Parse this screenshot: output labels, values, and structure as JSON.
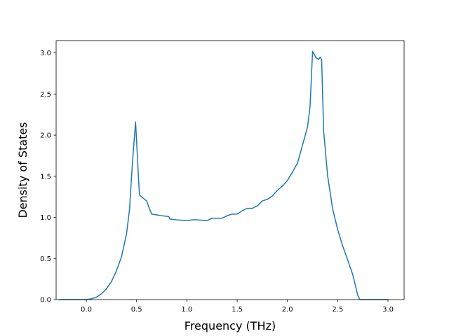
{
  "chart_data": {
    "type": "line",
    "title": "",
    "xlabel": "Frequency (THz)",
    "ylabel": "Density of States",
    "xlim": [
      -0.3,
      3.16
    ],
    "ylim": [
      0.0,
      3.15
    ],
    "xticks": [
      0.0,
      0.5,
      1.0,
      1.5,
      2.0,
      2.5,
      3.0
    ],
    "xtick_labels": [
      "0.0",
      "0.5",
      "1.0",
      "1.5",
      "2.0",
      "2.5",
      "3.0"
    ],
    "yticks": [
      0.0,
      0.5,
      1.0,
      1.5,
      2.0,
      2.5,
      3.0
    ],
    "ytick_labels": [
      "0.0",
      "0.5",
      "1.0",
      "1.5",
      "2.0",
      "2.5",
      "3.0"
    ],
    "grid": false,
    "legend": "none",
    "series": [
      {
        "color": "#1f77b4",
        "x": [
          -0.27,
          -0.2,
          -0.1,
          0.0,
          0.05,
          0.1,
          0.15,
          0.2,
          0.25,
          0.3,
          0.35,
          0.4,
          0.43,
          0.45,
          0.47,
          0.49,
          0.51,
          0.52,
          0.53,
          0.55,
          0.6,
          0.63,
          0.65,
          0.7,
          0.75,
          0.82,
          0.83,
          0.9,
          1.0,
          1.05,
          1.1,
          1.2,
          1.25,
          1.3,
          1.35,
          1.4,
          1.45,
          1.5,
          1.55,
          1.6,
          1.65,
          1.7,
          1.75,
          1.8,
          1.85,
          1.9,
          1.95,
          2.0,
          2.05,
          2.1,
          2.15,
          2.2,
          2.225,
          2.25,
          2.28,
          2.31,
          2.325,
          2.34,
          2.36,
          2.4,
          2.45,
          2.5,
          2.55,
          2.6,
          2.65,
          2.7,
          2.72,
          2.74,
          2.8,
          2.9,
          3.0
        ],
        "y": [
          0.0,
          0.0,
          0.0,
          0.0,
          0.01,
          0.03,
          0.07,
          0.13,
          0.22,
          0.35,
          0.52,
          0.8,
          1.1,
          1.5,
          1.85,
          2.16,
          1.7,
          1.45,
          1.27,
          1.25,
          1.2,
          1.1,
          1.04,
          1.03,
          1.02,
          1.01,
          0.98,
          0.97,
          0.96,
          0.97,
          0.97,
          0.96,
          0.99,
          0.99,
          0.99,
          1.02,
          1.04,
          1.04,
          1.08,
          1.11,
          1.11,
          1.14,
          1.2,
          1.22,
          1.26,
          1.33,
          1.38,
          1.45,
          1.55,
          1.66,
          1.88,
          2.1,
          2.35,
          3.02,
          2.95,
          2.92,
          2.95,
          2.92,
          2.05,
          1.5,
          1.1,
          0.85,
          0.65,
          0.48,
          0.3,
          0.05,
          0.0,
          0.0,
          0.0,
          0.0,
          0.0
        ]
      }
    ]
  }
}
